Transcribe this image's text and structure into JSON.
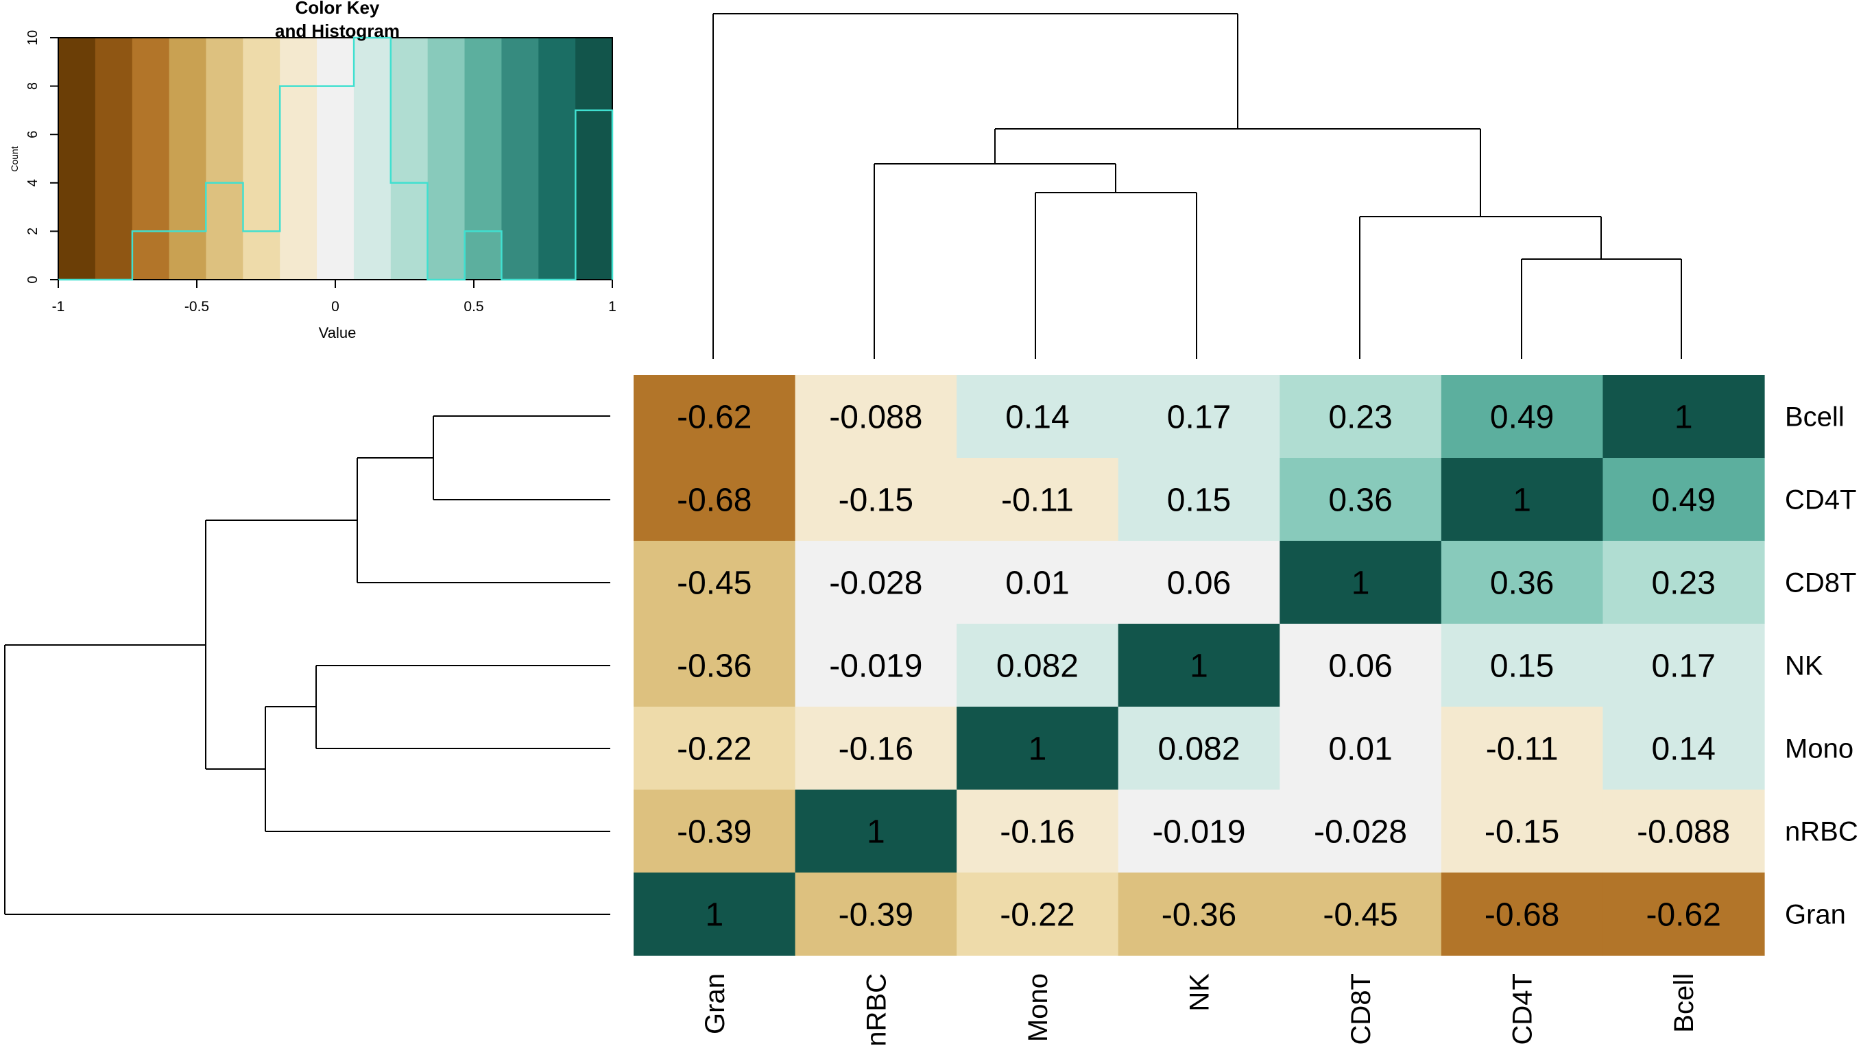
{
  "chart_data": [
    {
      "type": "heatmap",
      "columns": [
        "Gran",
        "nRBC",
        "Mono",
        "NK",
        "CD8T",
        "CD4T",
        "Bcell"
      ],
      "rows": [
        "Bcell",
        "CD4T",
        "CD8T",
        "NK",
        "Mono",
        "nRBC",
        "Gran"
      ],
      "cell_labels": [
        [
          "-0.62",
          "-0.088",
          "0.14",
          "0.17",
          "0.23",
          "0.49",
          "1"
        ],
        [
          "-0.68",
          "-0.15",
          "-0.11",
          "0.15",
          "0.36",
          "1",
          "0.49"
        ],
        [
          "-0.45",
          "-0.028",
          "0.01",
          "0.06",
          "1",
          "0.36",
          "0.23"
        ],
        [
          "-0.36",
          "-0.019",
          "0.082",
          "1",
          "0.06",
          "0.15",
          "0.17"
        ],
        [
          "-0.22",
          "-0.16",
          "1",
          "0.082",
          "0.01",
          "-0.11",
          "0.14"
        ],
        [
          "-0.39",
          "1",
          "-0.16",
          "-0.019",
          "-0.028",
          "-0.15",
          "-0.088"
        ],
        [
          "1",
          "-0.39",
          "-0.22",
          "-0.36",
          "-0.45",
          "-0.68",
          "-0.62"
        ]
      ],
      "color_range": [
        -1,
        1
      ],
      "dendrograms": "row and column"
    },
    {
      "type": "bar",
      "title": "Color Key\nand Histogram",
      "title_lines": [
        "Color Key",
        "and Histogram"
      ],
      "xlabel": "Value",
      "ylabel": "Count",
      "xlim": [
        -1,
        1
      ],
      "ylim": [
        0,
        10
      ],
      "x_ticks": [
        "-1",
        "-0.5",
        "0",
        "0.5",
        "1"
      ],
      "y_ticks": [
        "0",
        "2",
        "4",
        "6",
        "8",
        "10"
      ],
      "bin_edges": [
        -1.0,
        -0.867,
        -0.733,
        -0.6,
        -0.467,
        -0.333,
        -0.2,
        -0.067,
        0.067,
        0.2,
        0.333,
        0.467,
        0.6,
        0.733,
        0.867,
        1.0
      ],
      "counts": [
        0,
        0,
        2,
        2,
        4,
        2,
        8,
        8,
        10,
        4,
        0,
        2,
        0,
        0,
        7
      ],
      "line_color": "#40E0D0"
    }
  ],
  "palette": [
    "#6B3E06",
    "#8F5613",
    "#B27529",
    "#C9A152",
    "#DDC17F",
    "#EEDBAA",
    "#F4E9CF",
    "#F1F1F1",
    "#D3EAE5",
    "#B0DDD2",
    "#88CABB",
    "#5CAF9E",
    "#368B7F",
    "#1B6E64",
    "#12554B"
  ]
}
